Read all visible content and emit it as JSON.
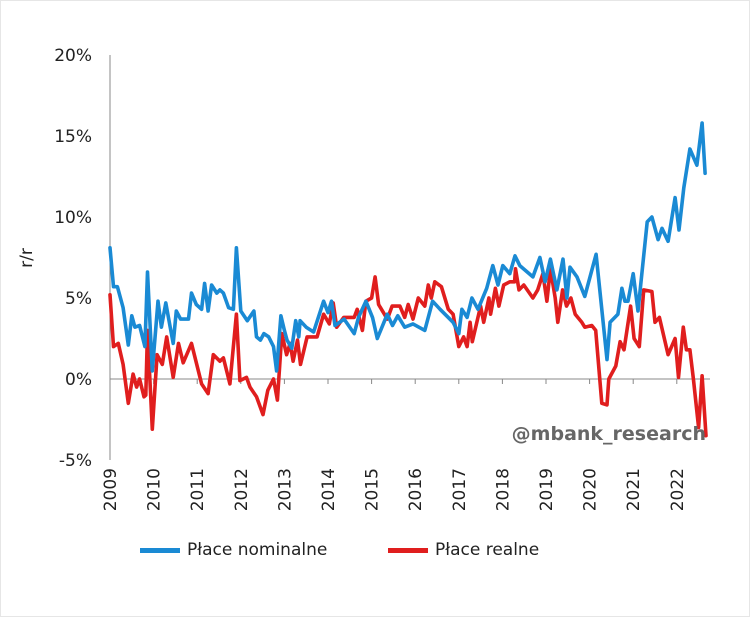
{
  "chart_data": {
    "type": "line",
    "title": "",
    "xlabel": "",
    "ylabel": "r/r",
    "ylim": [
      -5,
      20
    ],
    "xlim": [
      2009,
      2022.7
    ],
    "yticks": [
      -5,
      0,
      5,
      10,
      15,
      20
    ],
    "ytick_labels": [
      "-5%",
      "0%",
      "5%",
      "10%",
      "15%",
      "20%"
    ],
    "xtick_labels": [
      "2009",
      "2010",
      "2011",
      "2012",
      "2013",
      "2014",
      "2015",
      "2016",
      "2017",
      "2018",
      "2019",
      "2020",
      "2021",
      "2022"
    ],
    "grid": false,
    "legend_placement": "bottom",
    "annotation": "@mbank_research",
    "series": [
      {
        "name": "Płace nominalne",
        "color": "#1a8ad4",
        "x": [
          2009.0,
          2009.08,
          2009.17,
          2009.3,
          2009.42,
          2009.5,
          2009.57,
          2009.68,
          2009.8,
          2009.86,
          2009.97,
          2010.1,
          2010.18,
          2010.28,
          2010.38,
          2010.45,
          2010.52,
          2010.62,
          2010.8,
          2010.87,
          2010.98,
          2011.1,
          2011.17,
          2011.25,
          2011.33,
          2011.45,
          2011.52,
          2011.6,
          2011.72,
          2011.83,
          2011.9,
          2012.0,
          2012.15,
          2012.3,
          2012.36,
          2012.45,
          2012.53,
          2012.64,
          2012.75,
          2012.82,
          2012.92,
          2013.0,
          2013.06,
          2013.17,
          2013.26,
          2013.33,
          2013.36,
          2013.5,
          2013.67,
          2013.9,
          2014.0,
          2014.08,
          2014.16,
          2014.37,
          2014.6,
          2014.7,
          2014.87,
          2015.02,
          2015.13,
          2015.36,
          2015.48,
          2015.6,
          2015.76,
          2015.95,
          2016.22,
          2016.4,
          2016.57,
          2016.87,
          2017.0,
          2017.07,
          2017.19,
          2017.3,
          2017.44,
          2017.64,
          2017.78,
          2017.9,
          2018.01,
          2018.17,
          2018.29,
          2018.4,
          2018.7,
          2018.86,
          2018.98,
          2019.1,
          2019.25,
          2019.39,
          2019.48,
          2019.55,
          2019.71,
          2019.89,
          2020.15,
          2020.4,
          2020.47,
          2020.65,
          2020.74,
          2020.81,
          2020.88,
          2021.0,
          2021.11,
          2021.32,
          2021.43,
          2021.57,
          2021.66,
          2021.8,
          2021.96,
          2022.05,
          2022.16,
          2022.3,
          2022.46,
          2022.58,
          2022.65
        ],
        "y": [
          8.1,
          5.7,
          5.7,
          4.4,
          2.1,
          3.9,
          3.2,
          3.3,
          2.0,
          6.6,
          0.5,
          4.8,
          3.2,
          4.7,
          3.2,
          2.2,
          4.2,
          3.7,
          3.7,
          5.3,
          4.6,
          4.3,
          5.9,
          4.2,
          5.8,
          5.3,
          5.5,
          5.3,
          4.4,
          4.3,
          8.1,
          4.2,
          3.6,
          4.2,
          2.6,
          2.4,
          2.8,
          2.6,
          2.0,
          0.5,
          3.9,
          3.0,
          2.4,
          1.9,
          3.6,
          2.6,
          3.6,
          3.2,
          2.9,
          4.8,
          4.1,
          4.8,
          3.3,
          3.7,
          2.8,
          3.8,
          4.8,
          3.8,
          2.5,
          4.0,
          3.3,
          3.9,
          3.2,
          3.4,
          3.0,
          4.8,
          4.3,
          3.5,
          2.8,
          4.3,
          3.8,
          5.0,
          4.3,
          5.6,
          7.0,
          5.8,
          7.0,
          6.5,
          7.6,
          7.0,
          6.3,
          7.5,
          6.0,
          7.4,
          5.5,
          7.4,
          5.0,
          6.9,
          6.3,
          5.1,
          7.7,
          1.2,
          3.5,
          4.0,
          5.6,
          4.8,
          4.8,
          6.5,
          4.2,
          9.7,
          10.0,
          8.6,
          9.3,
          8.5,
          11.2,
          9.2,
          11.8,
          14.2,
          13.2,
          15.8,
          12.7
        ]
      },
      {
        "name": "Płace realne",
        "color": "#e01e1e",
        "x": [
          2009.0,
          2009.08,
          2009.19,
          2009.3,
          2009.42,
          2009.53,
          2009.61,
          2009.68,
          2009.78,
          2009.82,
          2009.86,
          2009.97,
          2010.08,
          2010.2,
          2010.3,
          2010.45,
          2010.57,
          2010.68,
          2010.87,
          2011.1,
          2011.25,
          2011.37,
          2011.52,
          2011.6,
          2011.75,
          2011.9,
          2011.98,
          2012.13,
          2012.21,
          2012.36,
          2012.51,
          2012.62,
          2012.75,
          2012.84,
          2012.94,
          2013.05,
          2013.13,
          2013.2,
          2013.3,
          2013.37,
          2013.52,
          2013.75,
          2013.9,
          2014.03,
          2014.12,
          2014.2,
          2014.36,
          2014.6,
          2014.67,
          2014.79,
          2014.87,
          2015.0,
          2015.08,
          2015.16,
          2015.36,
          2015.47,
          2015.65,
          2015.76,
          2015.84,
          2015.95,
          2016.07,
          2016.22,
          2016.3,
          2016.37,
          2016.45,
          2016.6,
          2016.76,
          2016.87,
          2017.0,
          2017.11,
          2017.19,
          2017.26,
          2017.31,
          2017.5,
          2017.57,
          2017.69,
          2017.73,
          2017.84,
          2017.92,
          2018.03,
          2018.17,
          2018.28,
          2018.3,
          2018.38,
          2018.49,
          2018.7,
          2018.81,
          2018.93,
          2019.02,
          2019.1,
          2019.21,
          2019.27,
          2019.38,
          2019.47,
          2019.57,
          2019.67,
          2019.82,
          2019.89,
          2020.05,
          2020.14,
          2020.28,
          2020.4,
          2020.44,
          2020.6,
          2020.7,
          2020.79,
          2020.94,
          2021.02,
          2021.14,
          2021.24,
          2021.43,
          2021.5,
          2021.6,
          2021.8,
          2021.96,
          2022.04,
          2022.15,
          2022.22,
          2022.3,
          2022.38,
          2022.5,
          2022.58,
          2022.67
        ],
        "y": [
          5.2,
          2.0,
          2.2,
          0.9,
          -1.5,
          0.3,
          -0.5,
          0.0,
          -1.1,
          -1.0,
          3.0,
          -3.1,
          1.5,
          0.9,
          2.6,
          0.1,
          2.2,
          1.0,
          2.2,
          -0.3,
          -0.9,
          1.5,
          1.1,
          1.3,
          -0.3,
          4.0,
          -0.1,
          0.1,
          -0.5,
          -1.1,
          -2.2,
          -0.7,
          0.0,
          -1.3,
          2.8,
          1.5,
          2.2,
          1.1,
          2.4,
          0.9,
          2.6,
          2.6,
          4.0,
          3.4,
          4.7,
          3.2,
          3.8,
          3.8,
          4.3,
          3.0,
          4.8,
          5.0,
          6.3,
          4.6,
          3.7,
          4.5,
          4.5,
          3.8,
          4.6,
          3.7,
          5.0,
          4.5,
          5.8,
          5.0,
          6.0,
          5.7,
          4.3,
          4.0,
          2.0,
          2.6,
          2.0,
          3.5,
          2.3,
          4.5,
          3.5,
          5.0,
          4.0,
          5.6,
          4.5,
          5.8,
          6.0,
          6.0,
          6.8,
          5.5,
          5.8,
          5.0,
          5.5,
          6.5,
          4.8,
          6.8,
          5.0,
          3.5,
          5.5,
          4.5,
          5.0,
          4.0,
          3.5,
          3.2,
          3.3,
          3.0,
          -1.5,
          -1.6,
          0.0,
          0.8,
          2.3,
          1.8,
          4.5,
          2.5,
          2.0,
          5.5,
          5.4,
          3.5,
          3.8,
          1.5,
          2.5,
          0.1,
          3.2,
          1.8,
          1.8,
          0.0,
          -3.0,
          0.2,
          -3.5
        ]
      }
    ]
  }
}
